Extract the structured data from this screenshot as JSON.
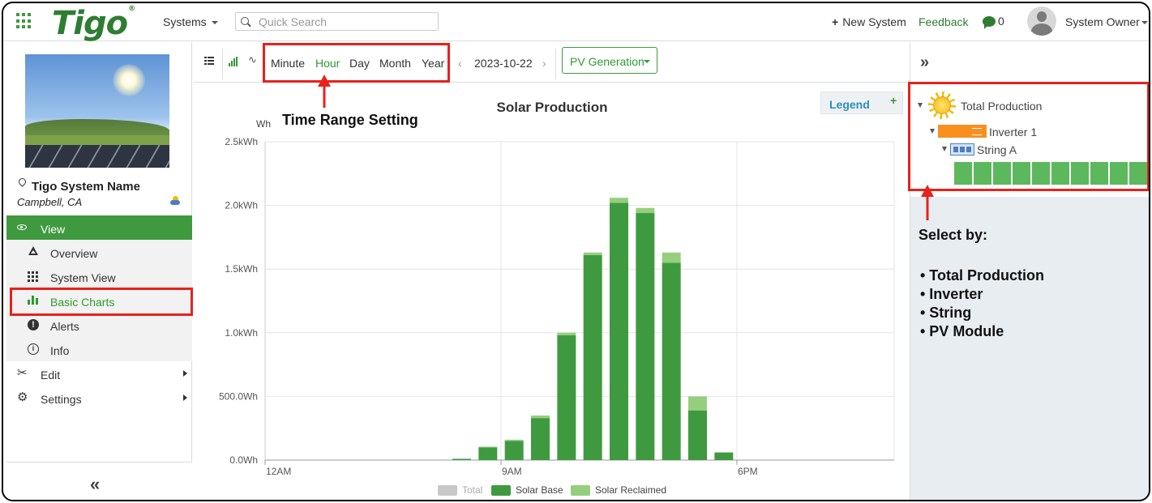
{
  "header": {
    "logo_text": "Tigo",
    "logo_mark": "®",
    "systems_label": "Systems",
    "search_placeholder": "Quick Search",
    "new_system_label": "New System",
    "feedback_label": "Feedback",
    "messages_count": "0",
    "user_label": "System Owner"
  },
  "sidebar": {
    "system_name": "Tigo System Name",
    "system_location": "Campbell, CA",
    "view_label": "View",
    "view_items": [
      {
        "label": "Overview",
        "icon": "triangle-icon"
      },
      {
        "label": "System View",
        "icon": "grid-dots-icon"
      },
      {
        "label": "Basic Charts",
        "icon": "bar-chart-icon",
        "active": true
      },
      {
        "label": "Alerts",
        "icon": "alert-icon"
      },
      {
        "label": "Info",
        "icon": "info-icon"
      }
    ],
    "edit_label": "Edit",
    "settings_label": "Settings",
    "collapse_glyph": "«"
  },
  "toolbar": {
    "ranges": [
      "Minute",
      "Hour",
      "Day",
      "Month",
      "Year"
    ],
    "active_range": "Hour",
    "date": "2023-10-22",
    "prev_glyph": "‹",
    "next_glyph": "›",
    "metric_label": "PV Generation"
  },
  "legend_button": {
    "label": "Legend",
    "plus": "+"
  },
  "chart_data": {
    "type": "bar",
    "stacked": true,
    "title": "Solar Production",
    "unit_label": "Wh",
    "y_ticks": [
      "0.0Wh",
      "500.0Wh",
      "1.0kWh",
      "1.5kWh",
      "2.0kWh",
      "2.5kWh"
    ],
    "ylim": [
      0,
      2500
    ],
    "x_ticks": [
      "12AM",
      "9AM",
      "6PM"
    ],
    "hours": [
      0,
      1,
      2,
      3,
      4,
      5,
      6,
      7,
      8,
      9,
      10,
      11,
      12,
      13,
      14,
      15,
      16,
      17,
      18,
      19,
      20,
      21,
      22,
      23
    ],
    "series": [
      {
        "name": "Total",
        "color": "#c8c8c8",
        "values": [
          0,
          0,
          0,
          0,
          0,
          0,
          0,
          0,
          0,
          0,
          0,
          0,
          0,
          0,
          0,
          0,
          0,
          0,
          0,
          0,
          0,
          0,
          0,
          0
        ]
      },
      {
        "name": "Solar Base",
        "color": "#3f9a3f",
        "values": [
          0,
          0,
          0,
          0,
          0,
          0,
          0,
          10,
          100,
          150,
          330,
          980,
          1610,
          2020,
          1940,
          1550,
          390,
          60,
          0,
          0,
          0,
          0,
          0,
          0
        ]
      },
      {
        "name": "Solar Reclaimed",
        "color": "#95cf7e",
        "values": [
          0,
          0,
          0,
          0,
          0,
          0,
          0,
          0,
          5,
          10,
          20,
          20,
          20,
          40,
          40,
          80,
          110,
          0,
          0,
          0,
          0,
          0,
          0,
          0
        ]
      }
    ],
    "grid": true,
    "legend_position": "bottom"
  },
  "right_panel": {
    "collapse_glyph": "»",
    "tree": {
      "total_label": "Total Production",
      "inverter_label": "Inverter 1",
      "string_label": "String A",
      "module_count": 10
    }
  },
  "annotations": {
    "time_range": "Time Range Setting",
    "select_title": "Select by:",
    "select_items": [
      "• Total Production",
      "• Inverter",
      "• String",
      "• PV Module"
    ]
  },
  "colors": {
    "brand_green": "#3f9a3f",
    "annotation_red": "#e8211b",
    "legend_blue": "#2a8fbd",
    "inverter_orange": "#f7901e"
  }
}
